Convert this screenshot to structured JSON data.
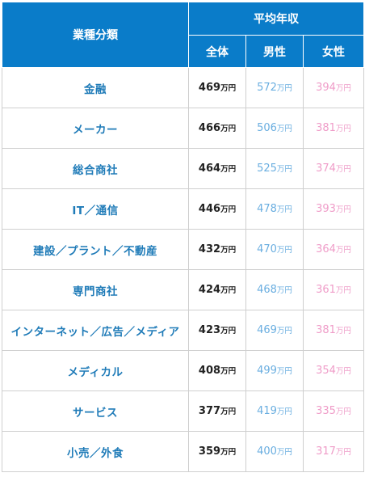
{
  "header": {
    "category": "業種分類",
    "average_income": "平均年収",
    "total": "全体",
    "male": "男性",
    "female": "女性"
  },
  "unit": "万円",
  "rows": [
    {
      "category": "金融",
      "total": "469",
      "male": "572",
      "female": "394"
    },
    {
      "category": "メーカー",
      "total": "466",
      "male": "506",
      "female": "381"
    },
    {
      "category": "総合商社",
      "total": "464",
      "male": "525",
      "female": "374"
    },
    {
      "category": "IT／通信",
      "total": "446",
      "male": "478",
      "female": "393"
    },
    {
      "category": "建設／プラント／不動産",
      "total": "432",
      "male": "470",
      "female": "364"
    },
    {
      "category": "専門商社",
      "total": "424",
      "male": "468",
      "female": "361"
    },
    {
      "category": "インターネット／広告／メディア",
      "total": "423",
      "male": "469",
      "female": "381"
    },
    {
      "category": "メディカル",
      "total": "408",
      "male": "499",
      "female": "354"
    },
    {
      "category": "サービス",
      "total": "377",
      "male": "419",
      "female": "335"
    },
    {
      "category": "小売／外食",
      "total": "359",
      "male": "400",
      "female": "317"
    }
  ],
  "colors": {
    "header_bg": "#0a7cc9",
    "category_text": "#1f7bb8",
    "total_text": "#222222",
    "male_text": "#6aaee0",
    "female_text": "#ef9cc8"
  }
}
